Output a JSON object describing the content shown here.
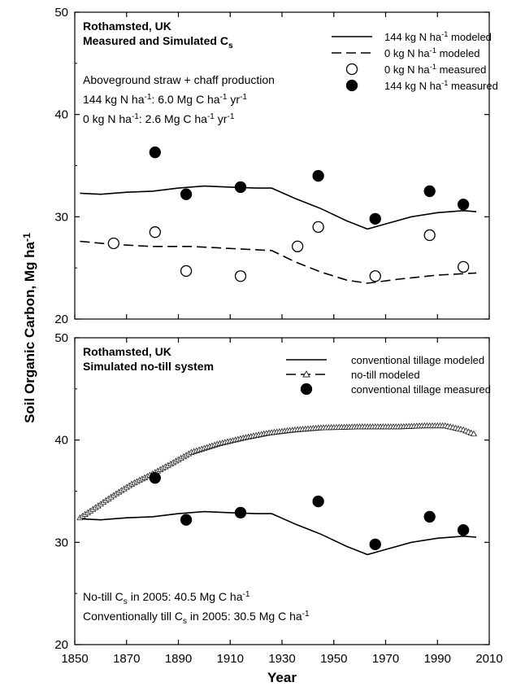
{
  "chart_data": [
    {
      "type": "line",
      "panel": "top",
      "title": [
        "Rothamsted, UK",
        "Measured and Simulated C<sub>s</sub>"
      ],
      "annotations": [
        "Aboveground straw + chaff production",
        "144 kg N ha<sup>-1</sup>: 6.0 Mg C ha<sup>-1</sup> yr<sup>-1</sup>",
        "0 kg N ha<sup>-1</sup>: 2.6 Mg C ha<sup>-1</sup> yr<sup>-1</sup>"
      ],
      "xlim": [
        1850,
        2010
      ],
      "ylim": [
        20,
        50
      ],
      "yticks": [
        "20",
        "30",
        "40",
        "50"
      ],
      "legend_position": "top-right",
      "series": [
        {
          "name": "144 kg N ha<sup>-1</sup> modeled",
          "style": "solid",
          "points": [
            [
              1852,
              32.3
            ],
            [
              1860,
              32.2
            ],
            [
              1870,
              32.4
            ],
            [
              1880,
              32.5
            ],
            [
              1890,
              32.8
            ],
            [
              1900,
              33.0
            ],
            [
              1910,
              32.9
            ],
            [
              1920,
              32.8
            ],
            [
              1926,
              32.8
            ],
            [
              1935,
              31.8
            ],
            [
              1945,
              30.8
            ],
            [
              1955,
              29.6
            ],
            [
              1963,
              28.8
            ],
            [
              1970,
              29.3
            ],
            [
              1980,
              30.0
            ],
            [
              1990,
              30.4
            ],
            [
              2000,
              30.6
            ],
            [
              2005,
              30.5
            ]
          ]
        },
        {
          "name": "0 kg N ha<sup>-1</sup> modeled",
          "style": "dashed",
          "points": [
            [
              1852,
              27.6
            ],
            [
              1865,
              27.3
            ],
            [
              1880,
              27.1
            ],
            [
              1895,
              27.1
            ],
            [
              1910,
              26.9
            ],
            [
              1926,
              26.7
            ],
            [
              1935,
              25.6
            ],
            [
              1945,
              24.6
            ],
            [
              1955,
              23.8
            ],
            [
              1963,
              23.5
            ],
            [
              1975,
              23.9
            ],
            [
              1990,
              24.3
            ],
            [
              2005,
              24.5
            ]
          ]
        },
        {
          "name": "0 kg N ha<sup>-1</sup> measured",
          "style": "open-circle",
          "points": [
            [
              1865,
              27.4
            ],
            [
              1881,
              28.5
            ],
            [
              1893,
              24.7
            ],
            [
              1914,
              24.2
            ],
            [
              1936,
              27.1
            ],
            [
              1944,
              29.0
            ],
            [
              1966,
              24.2
            ],
            [
              1987,
              28.2
            ],
            [
              2000,
              25.1
            ]
          ]
        },
        {
          "name": "144 kg N ha<sup>-1</sup> measured",
          "style": "filled-circle",
          "points": [
            [
              1881,
              36.3
            ],
            [
              1893,
              32.2
            ],
            [
              1914,
              32.9
            ],
            [
              1944,
              34.0
            ],
            [
              1966,
              29.8
            ],
            [
              1987,
              32.5
            ],
            [
              2000,
              31.2
            ]
          ]
        }
      ]
    },
    {
      "type": "line",
      "panel": "bottom",
      "title": [
        "Rothamsted, UK",
        "Simulated no-till system"
      ],
      "annotations": [
        "No-till C<sub>s</sub> in 2005: 40.5 Mg C ha<sup>-1</sup>",
        "Conventionally till C<sub>s</sub> in 2005: 30.5 Mg C ha<sup>-1</sup>"
      ],
      "xlim": [
        1850,
        2010
      ],
      "ylim": [
        20,
        50
      ],
      "xticks": [
        "1850",
        "1870",
        "1890",
        "1910",
        "1930",
        "1950",
        "1970",
        "1990",
        "2010"
      ],
      "yticks": [
        "20",
        "30",
        "40",
        "50"
      ],
      "xlabel": "Year",
      "legend_position": "top-right",
      "series": [
        {
          "name": "conventional tillage modeled",
          "style": "solid",
          "points": [
            [
              1852,
              32.3
            ],
            [
              1860,
              32.2
            ],
            [
              1870,
              32.4
            ],
            [
              1880,
              32.5
            ],
            [
              1890,
              32.8
            ],
            [
              1900,
              33.0
            ],
            [
              1910,
              32.9
            ],
            [
              1920,
              32.8
            ],
            [
              1926,
              32.8
            ],
            [
              1935,
              31.8
            ],
            [
              1945,
              30.8
            ],
            [
              1955,
              29.6
            ],
            [
              1963,
              28.8
            ],
            [
              1970,
              29.3
            ],
            [
              1980,
              30.0
            ],
            [
              1990,
              30.4
            ],
            [
              2000,
              30.6
            ],
            [
              2005,
              30.5
            ]
          ]
        },
        {
          "name": "no-till modeled",
          "style": "dashed-triangle",
          "points": [
            [
              1852,
              32.4
            ],
            [
              1858,
              33.4
            ],
            [
              1865,
              34.6
            ],
            [
              1872,
              35.7
            ],
            [
              1880,
              36.7
            ],
            [
              1888,
              37.8
            ],
            [
              1895,
              38.8
            ],
            [
              1905,
              39.6
            ],
            [
              1915,
              40.2
            ],
            [
              1925,
              40.7
            ],
            [
              1935,
              41.0
            ],
            [
              1945,
              41.2
            ],
            [
              1960,
              41.3
            ],
            [
              1975,
              41.3
            ],
            [
              1985,
              41.4
            ],
            [
              1993,
              41.4
            ],
            [
              2000,
              41.0
            ],
            [
              2005,
              40.5
            ]
          ]
        },
        {
          "name": "conventional tillage measured",
          "style": "filled-circle",
          "points": [
            [
              1881,
              36.3
            ],
            [
              1893,
              32.2
            ],
            [
              1914,
              32.9
            ],
            [
              1944,
              34.0
            ],
            [
              1966,
              29.8
            ],
            [
              1987,
              32.5
            ],
            [
              2000,
              31.2
            ]
          ]
        }
      ]
    }
  ],
  "ylabel": "Soil Organic Carbon, Mg ha<sup>-1</sup>"
}
